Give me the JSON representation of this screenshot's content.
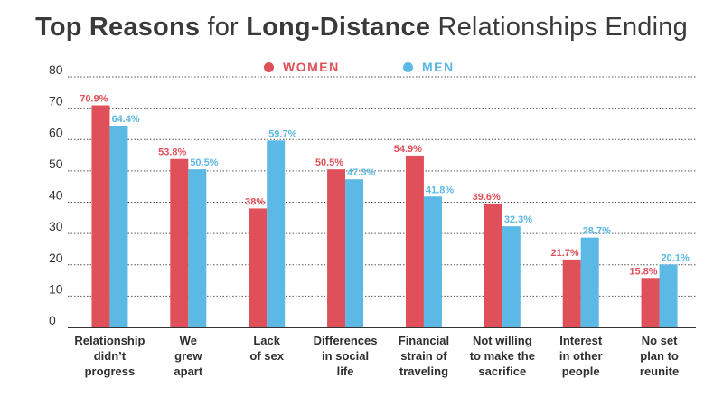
{
  "title": {
    "part1": "Top Reasons",
    "part2": "for",
    "part3": "Long-Distance",
    "part4": "Relationships Ending"
  },
  "colors": {
    "women": "#e0505a",
    "men": "#5cb8e4",
    "axis": "#333333",
    "grid": "#555555"
  },
  "chart_data": {
    "type": "bar",
    "categories": [
      [
        "Relationship",
        "didn’t",
        "progress"
      ],
      [
        "We",
        "grew",
        "apart"
      ],
      [
        "Lack",
        "of sex"
      ],
      [
        "Differences",
        "in social",
        "life"
      ],
      [
        "Financial",
        "strain of",
        "traveling"
      ],
      [
        "Not willing",
        "to make the",
        "sacrifice"
      ],
      [
        "Interest",
        "in other",
        "people"
      ],
      [
        "No set",
        "plan to",
        "reunite"
      ]
    ],
    "series": [
      {
        "name": "WOMEN",
        "values": [
          70.9,
          53.8,
          38,
          50.5,
          54.9,
          39.6,
          21.7,
          15.8
        ],
        "labels": [
          "70.9%",
          "53.8%",
          "38%",
          "50.5%",
          "54.9%",
          "39.6%",
          "21.7%",
          "15.8%"
        ]
      },
      {
        "name": "MEN",
        "values": [
          64.4,
          50.5,
          59.7,
          47.3,
          41.8,
          32.3,
          28.7,
          20.1
        ],
        "labels": [
          "64.4%",
          "50.5%",
          "59.7%",
          "47.3%",
          "41.8%",
          "32.3%",
          "28.7%",
          "20.1%"
        ]
      }
    ],
    "yticks": [
      "0",
      "10",
      "20",
      "30",
      "40",
      "50",
      "60",
      "70",
      "80"
    ],
    "ylim": [
      0,
      80
    ],
    "grid": true,
    "legend_position": "top-center"
  }
}
